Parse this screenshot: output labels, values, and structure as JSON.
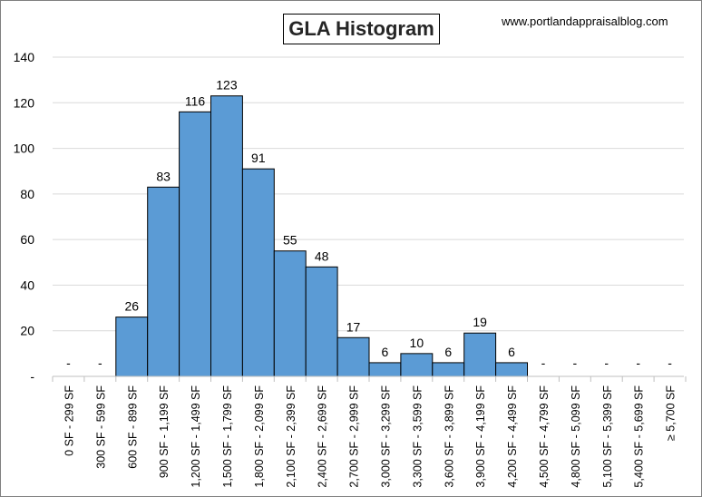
{
  "chart_data": {
    "type": "bar",
    "title": "GLA Histogram",
    "source": "www.portlandappraisalblog.com",
    "categories": [
      "0 SF - 299 SF",
      "300 SF - 599 SF",
      "600 SF - 899 SF",
      "900 SF - 1,199 SF",
      "1,200 SF - 1,499 SF",
      "1,500 SF - 1,799 SF",
      "1,800 SF - 2,099 SF",
      "2,100 SF - 2,399 SF",
      "2,400 SF - 2,699 SF",
      "2,700 SF - 2,999 SF",
      "3,000 SF - 3,299 SF",
      "3,300 SF - 3,599 SF",
      "3,600 SF - 3,899 SF",
      "3,900 SF - 4,199 SF",
      "4,200 SF - 4,499 SF",
      "4,500 SF - 4,799 SF",
      "4,800 SF - 5,099 SF",
      "5,100 SF - 5,399 SF",
      "5,400 SF - 5,699 SF",
      "≥ 5,700 SF"
    ],
    "values": [
      0,
      0,
      26,
      83,
      116,
      123,
      91,
      55,
      48,
      17,
      6,
      10,
      6,
      19,
      6,
      0,
      0,
      0,
      0,
      0
    ],
    "data_labels": [
      "-",
      "-",
      "26",
      "83",
      "116",
      "123",
      "91",
      "55",
      "48",
      "17",
      "6",
      "10",
      "6",
      "19",
      "6",
      "-",
      "-",
      "-",
      "-",
      "-"
    ],
    "y_ticks": [
      "-",
      "20",
      "40",
      "60",
      "80",
      "100",
      "120",
      "140"
    ],
    "ylim": [
      0,
      140
    ],
    "grid": true,
    "bar_color": "#5b9bd5",
    "bar_edge_color": "#000000",
    "grid_color": "#d9d9d9"
  }
}
